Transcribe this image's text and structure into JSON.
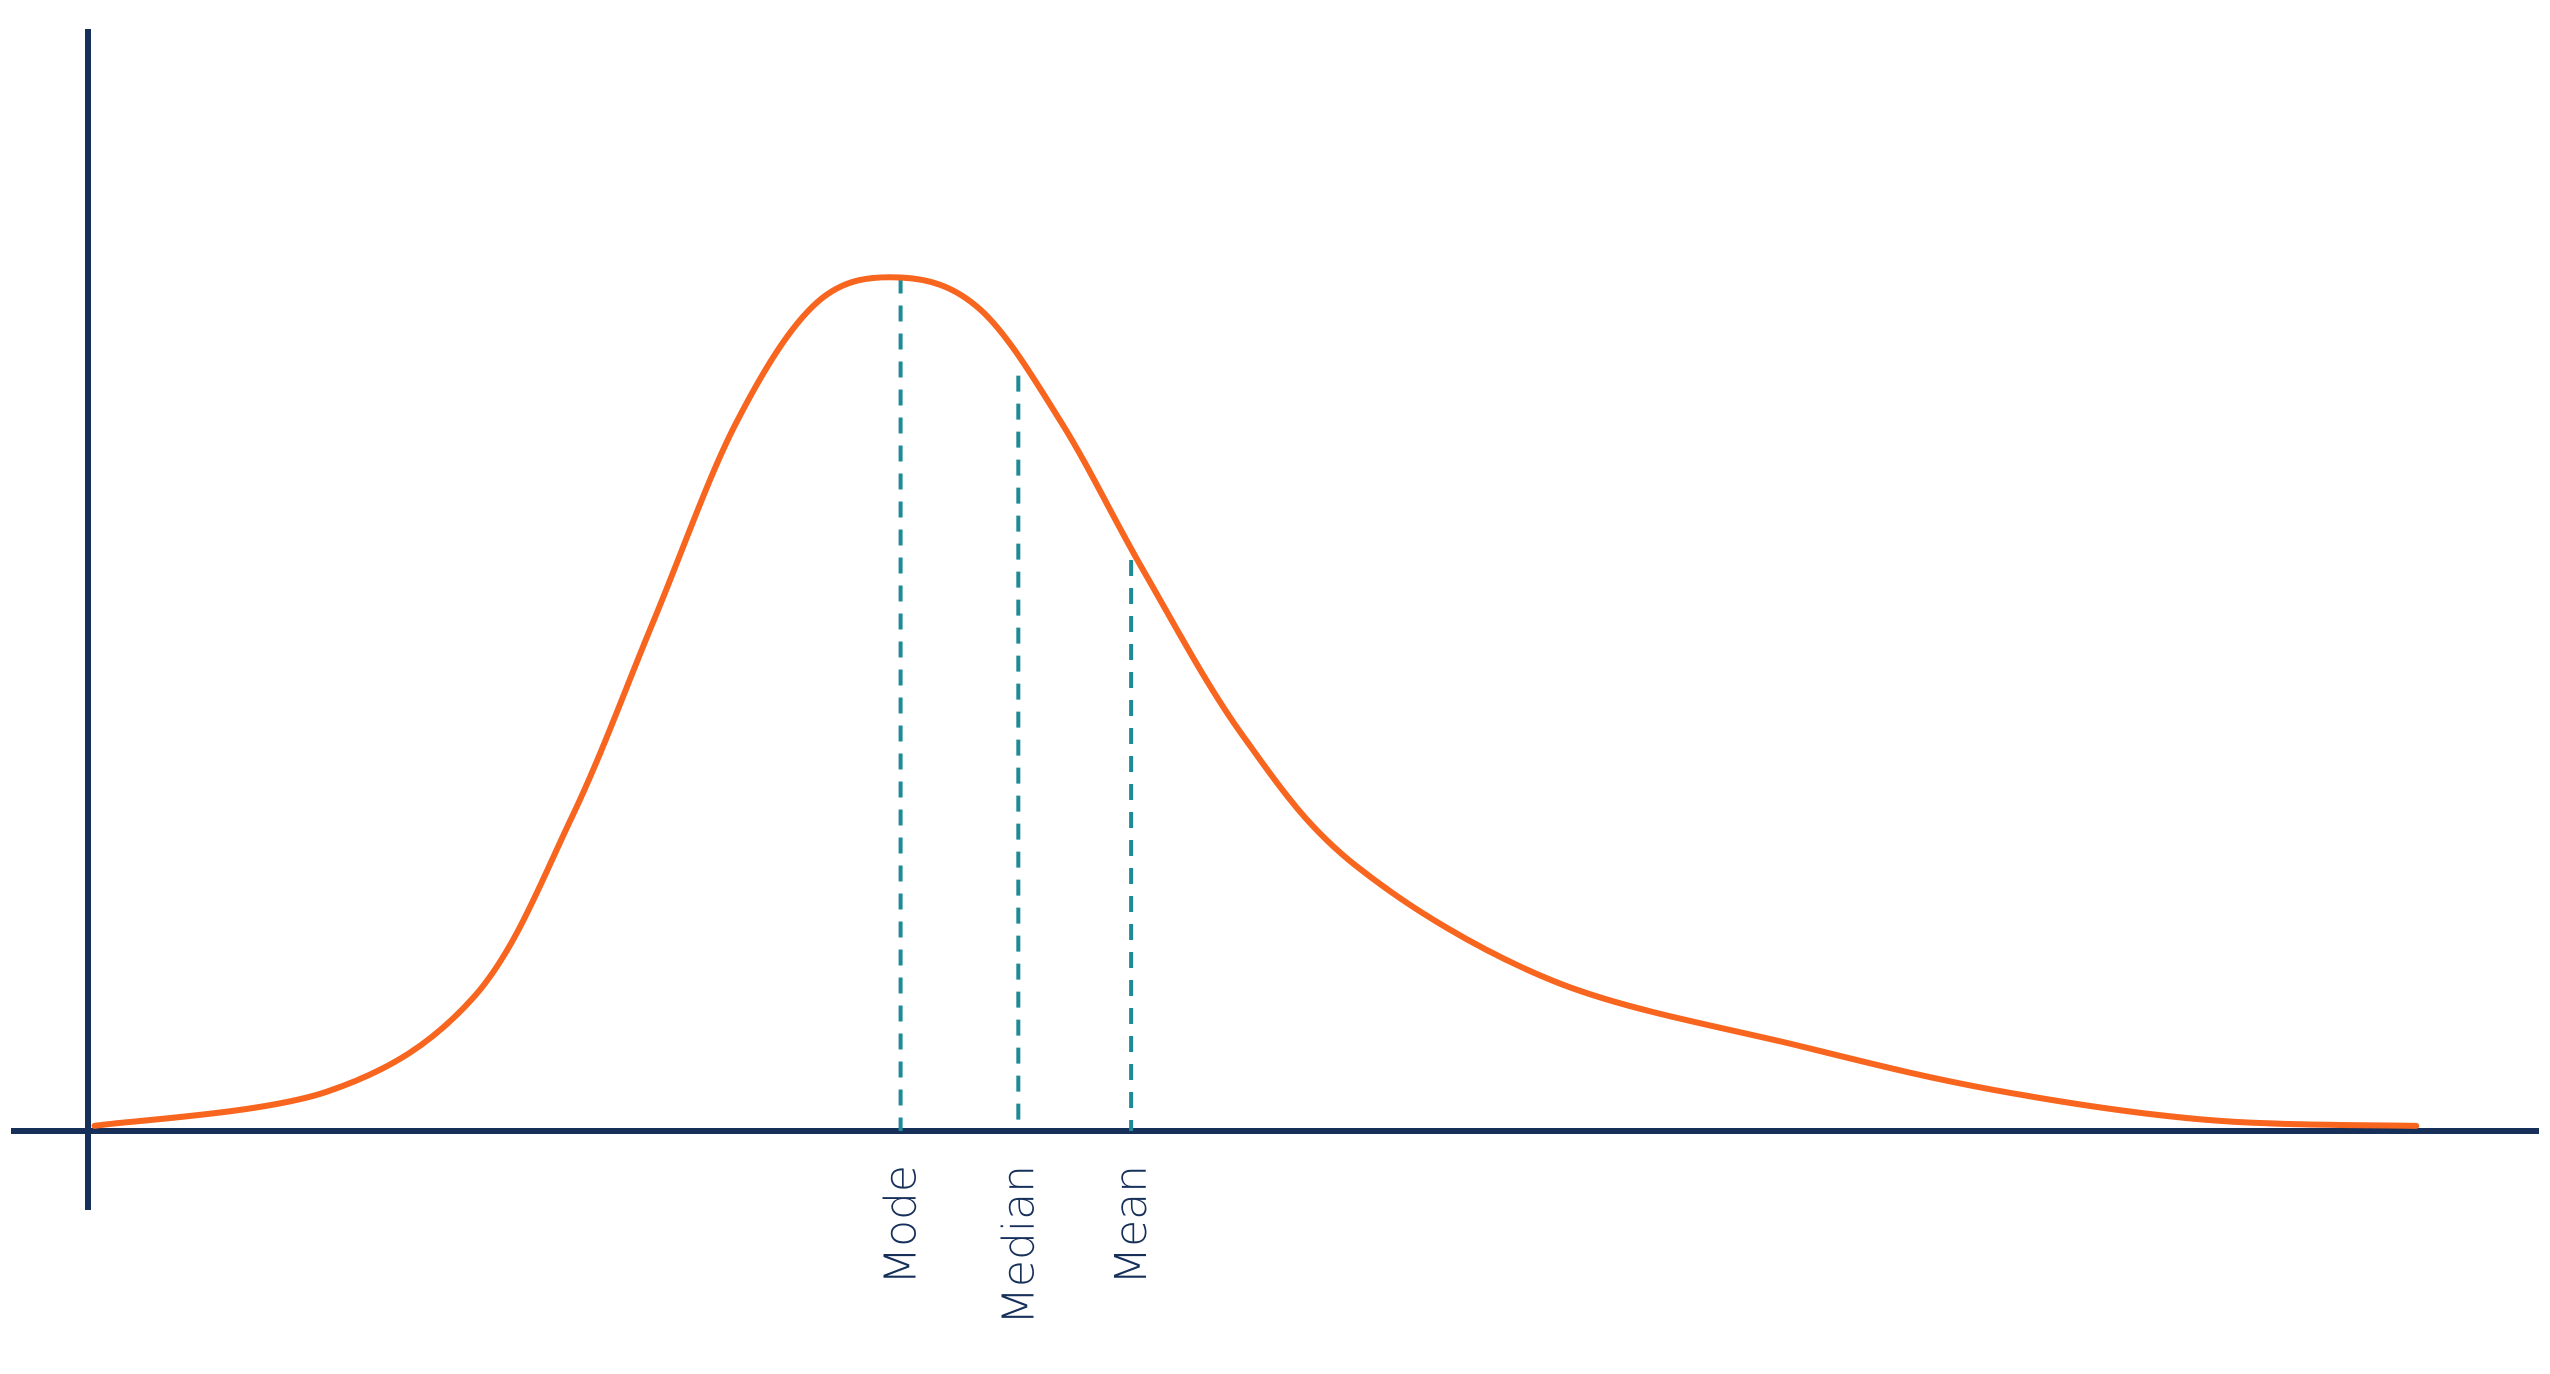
{
  "chart_data": {
    "type": "line",
    "title": "",
    "xlabel": "",
    "ylabel": "",
    "grid": false,
    "axis_ticks": false,
    "colors": {
      "axis": "#16305a",
      "curve": "#f7651f",
      "markers": "#1e8a96",
      "labels": "#16305a"
    },
    "curve": {
      "x": [
        0.4,
        14.6,
        23.6,
        29.6,
        34.6,
        39.6,
        44.6,
        49.7,
        54.6,
        59.6,
        64.6,
        70.6,
        77.6,
        89.6,
        104.6,
        116.6,
        129.6,
        142.4
      ],
      "y": [
        0.6,
        4.6,
        15.7,
        36.8,
        59.8,
        82.8,
        97.1,
        100,
        96.2,
        82.8,
        65.5,
        46.4,
        31.0,
        17.6,
        10.0,
        4.8,
        1.3,
        0.6
      ]
    },
    "markers": [
      {
        "label": "Mode",
        "x": 49.7,
        "y": 100,
        "style": "dashed"
      },
      {
        "label": "Median",
        "x": 56.9,
        "y": 88.5,
        "style": "dashed"
      },
      {
        "label": "Mean",
        "x": 63.8,
        "y": 66.9,
        "style": "dashed"
      }
    ]
  }
}
